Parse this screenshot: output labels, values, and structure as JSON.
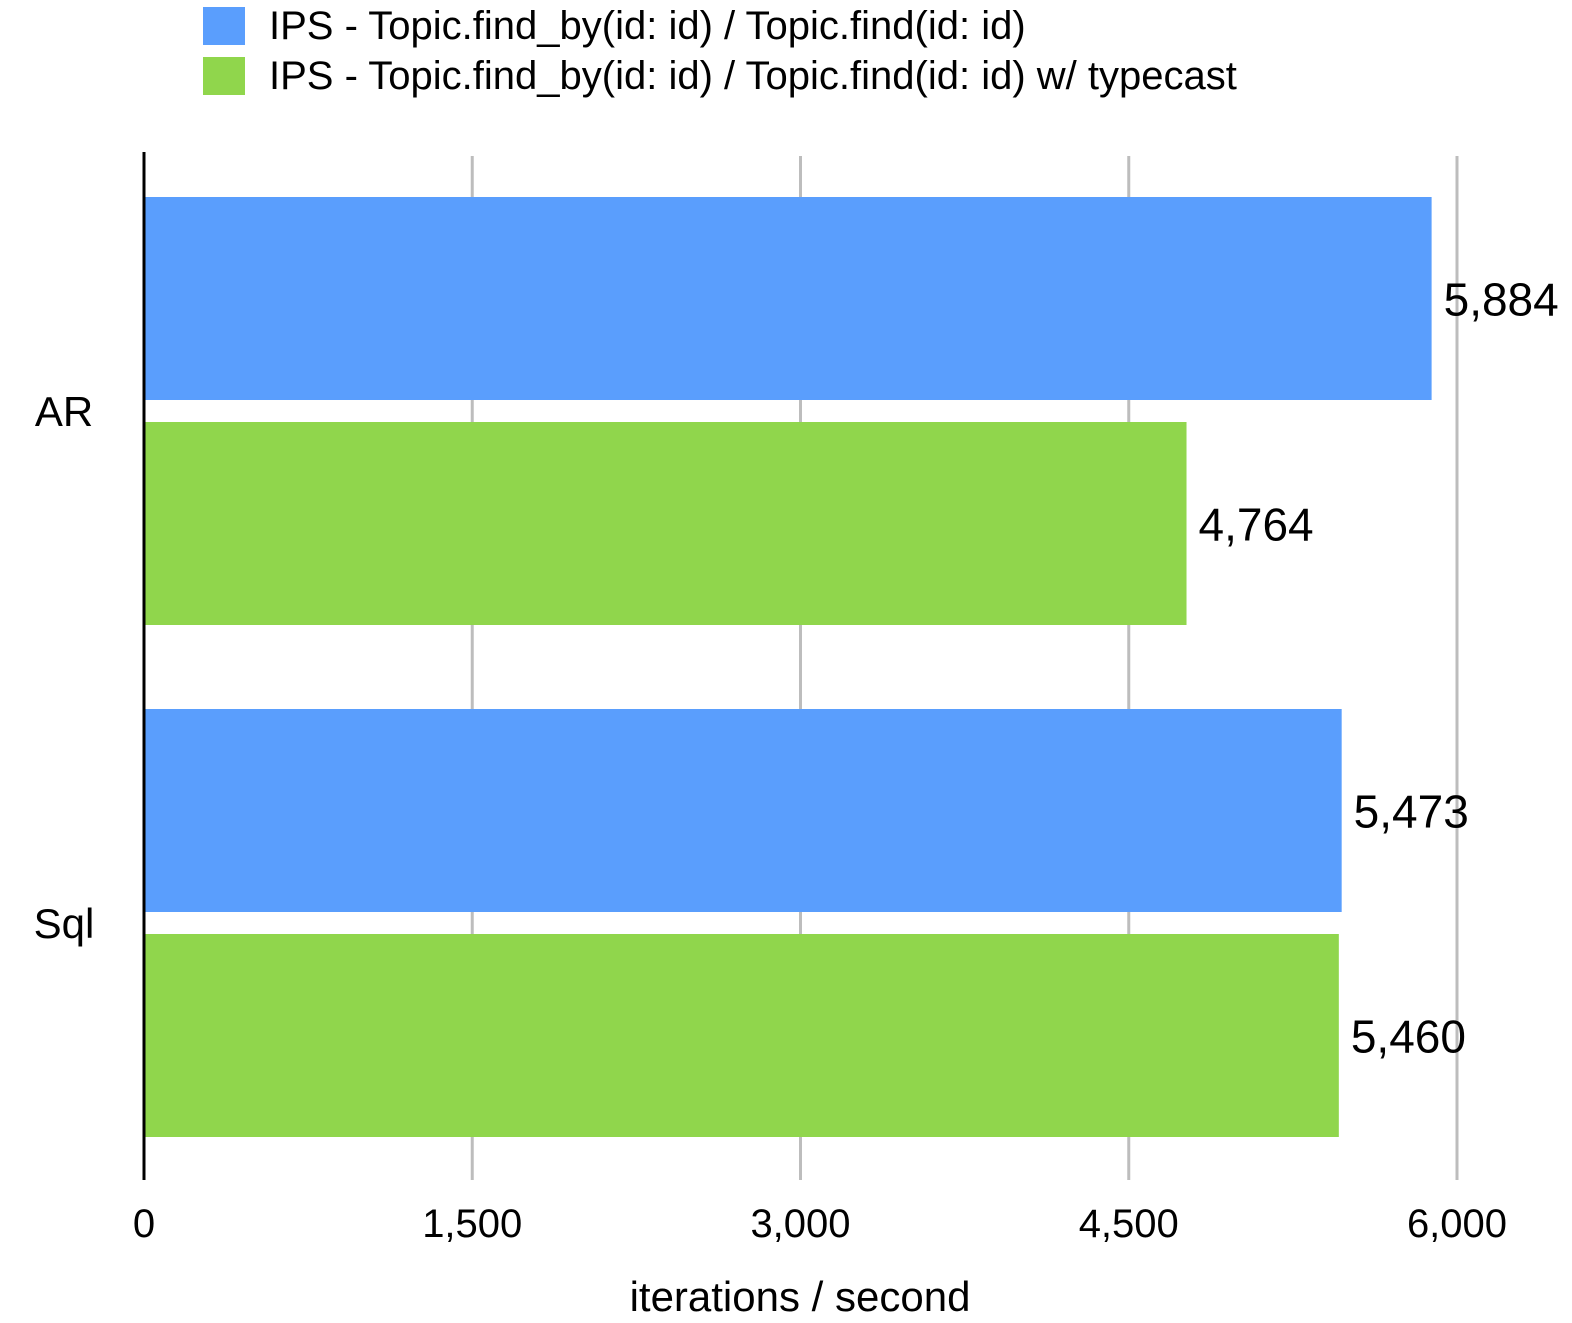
{
  "chart_data": {
    "type": "bar",
    "orientation": "horizontal",
    "title": "",
    "xlabel": "iterations / second",
    "ylabel": "",
    "categories": [
      "AR",
      "Sql"
    ],
    "series": [
      {
        "name": "IPS - Topic.find_by(id: id) / Topic.find(id: id)",
        "color": "#5a9efd",
        "values": [
          5884,
          5473
        ]
      },
      {
        "name": "IPS - Topic.find_by(id: id) / Topic.find(id: id) w/ typecast",
        "color": "#90d64c",
        "values": [
          4764,
          5460
        ]
      }
    ],
    "data_labels": [
      [
        "5,884",
        "5,473"
      ],
      [
        "4,764",
        "5,460"
      ]
    ],
    "xlim": [
      0,
      6000
    ],
    "xticks": [
      0,
      1500,
      3000,
      4500,
      6000
    ],
    "xtick_labels": [
      "0",
      "1,500",
      "3,000",
      "4,500",
      "6,000"
    ],
    "grid": "vertical",
    "grid_color": "#bdbdbd",
    "legend_position": "top"
  }
}
